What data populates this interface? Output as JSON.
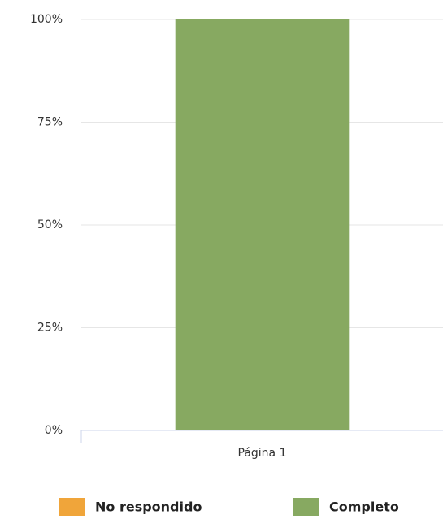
{
  "chart_data": {
    "type": "stacked_bar",
    "categories": [
      "Página 1"
    ],
    "series": [
      {
        "name": "No respondido",
        "color": "#f0a53a",
        "values": [
          0
        ]
      },
      {
        "name": "Completo",
        "color": "#87a961",
        "values": [
          100
        ]
      }
    ],
    "ylim": [
      0,
      100
    ],
    "yticks": [
      {
        "value": 0,
        "label": "0%"
      },
      {
        "value": 25,
        "label": "25%"
      },
      {
        "value": 50,
        "label": "50%"
      },
      {
        "value": 75,
        "label": "75%"
      },
      {
        "value": 100,
        "label": "100%"
      }
    ],
    "grid": true,
    "legend": "bottom"
  }
}
